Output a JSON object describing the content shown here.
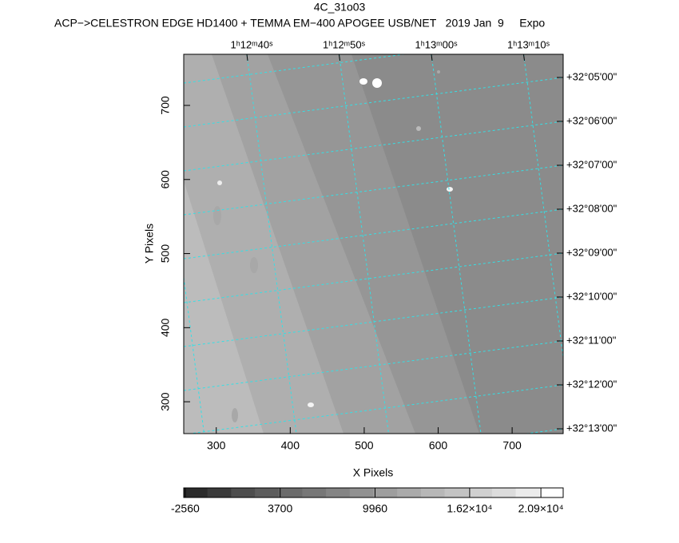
{
  "chart_data": {
    "type": "image",
    "title": "4C_31o03",
    "subtitle": "ACP−>CELESTRON EDGE HD1400 + TEMMA EM−400 APOGEE USB/NET   2019 Jan  9     Expo",
    "x_label": "X Pixels",
    "y_label": "Y Pixels",
    "xlim": [
      256,
      769
    ],
    "xticks": [
      300,
      400,
      500,
      600,
      700
    ],
    "ylim": [
      257,
      769
    ],
    "yticks": [
      300,
      400,
      500,
      600,
      700
    ],
    "ra_labels": [
      "1ʰ12ᵐ40ˢ",
      "1ʰ12ᵐ50ˢ",
      "1ʰ13ᵐ00ˢ",
      "1ʰ13ᵐ10ˢ"
    ],
    "dec_labels": [
      "+32°05'00\"",
      "+32°06'00\"",
      "+32°07'00\"",
      "+32°08'00\"",
      "+32°09'00\"",
      "+32°10'00\"",
      "+32°11'00\"",
      "+32°12'00\"",
      "+32°13'00\""
    ],
    "grid_color": "#33e0e6",
    "clim": [
      -2660,
      22370
    ],
    "cticks": [
      -2560,
      3700,
      9960,
      {
        "value": 16200,
        "label": "1.62×10⁴"
      },
      {
        "value": 20900,
        "label": "2.09×10⁴"
      }
    ],
    "colormap": [
      "#2b2b2b",
      "#3a3a3a",
      "#4d4d4d",
      "#5c5c5c",
      "#6b6b6b",
      "#777777",
      "#848484",
      "#919191",
      "#9e9e9e",
      "#aaaaaa",
      "#b7b7b7",
      "#c3c3c3",
      "#d0d0d0",
      "#dcdcdc",
      "#ebebeb",
      "#ffffff"
    ]
  }
}
